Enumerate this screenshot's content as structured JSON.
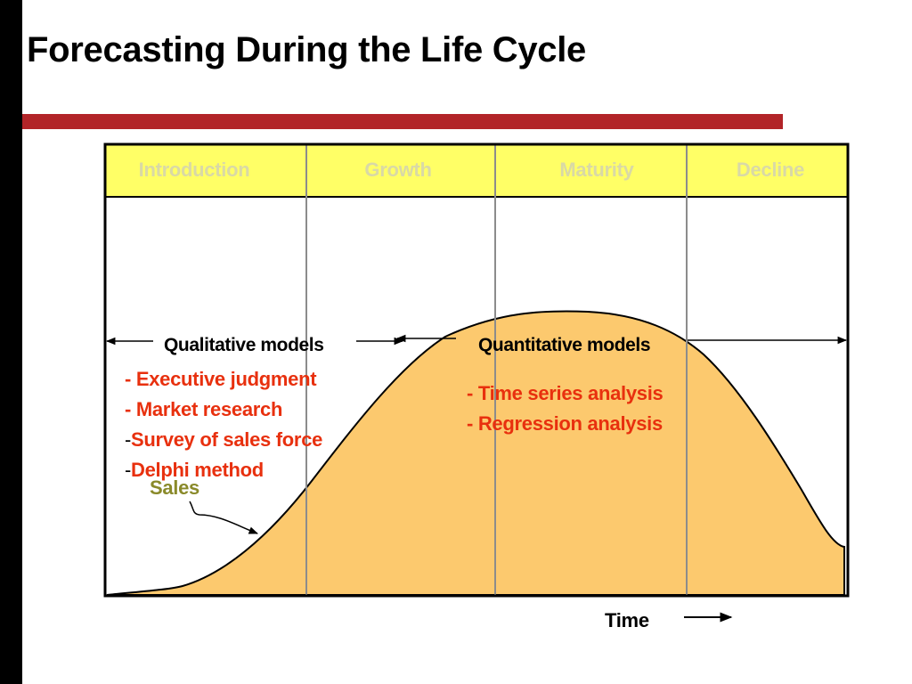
{
  "title": "Forecasting During the Life Cycle",
  "colors": {
    "title_rule": "#b22428",
    "header_fill": "#ffff66",
    "phase_text": "#d9d9a6",
    "curve_fill": "#fcc96e",
    "method_text": "#e8300e",
    "sales_text": "#8a8a2a"
  },
  "phases": [
    "Introduction",
    "Growth",
    "Maturity",
    "Decline"
  ],
  "qualitative": {
    "heading": "Qualitative models",
    "items": [
      {
        "dash": "- ",
        "label": "Executive judgment"
      },
      {
        "dash": "- ",
        "label": "Market research"
      },
      {
        "dash": "-",
        "label": "Survey of sales force"
      },
      {
        "dash": "-",
        "label": "Delphi method"
      }
    ]
  },
  "quantitative": {
    "heading": "Quantitative models",
    "items": [
      "- Time series analysis",
      "- Regression analysis"
    ]
  },
  "curve_label": "Sales",
  "axis_label": "Time"
}
